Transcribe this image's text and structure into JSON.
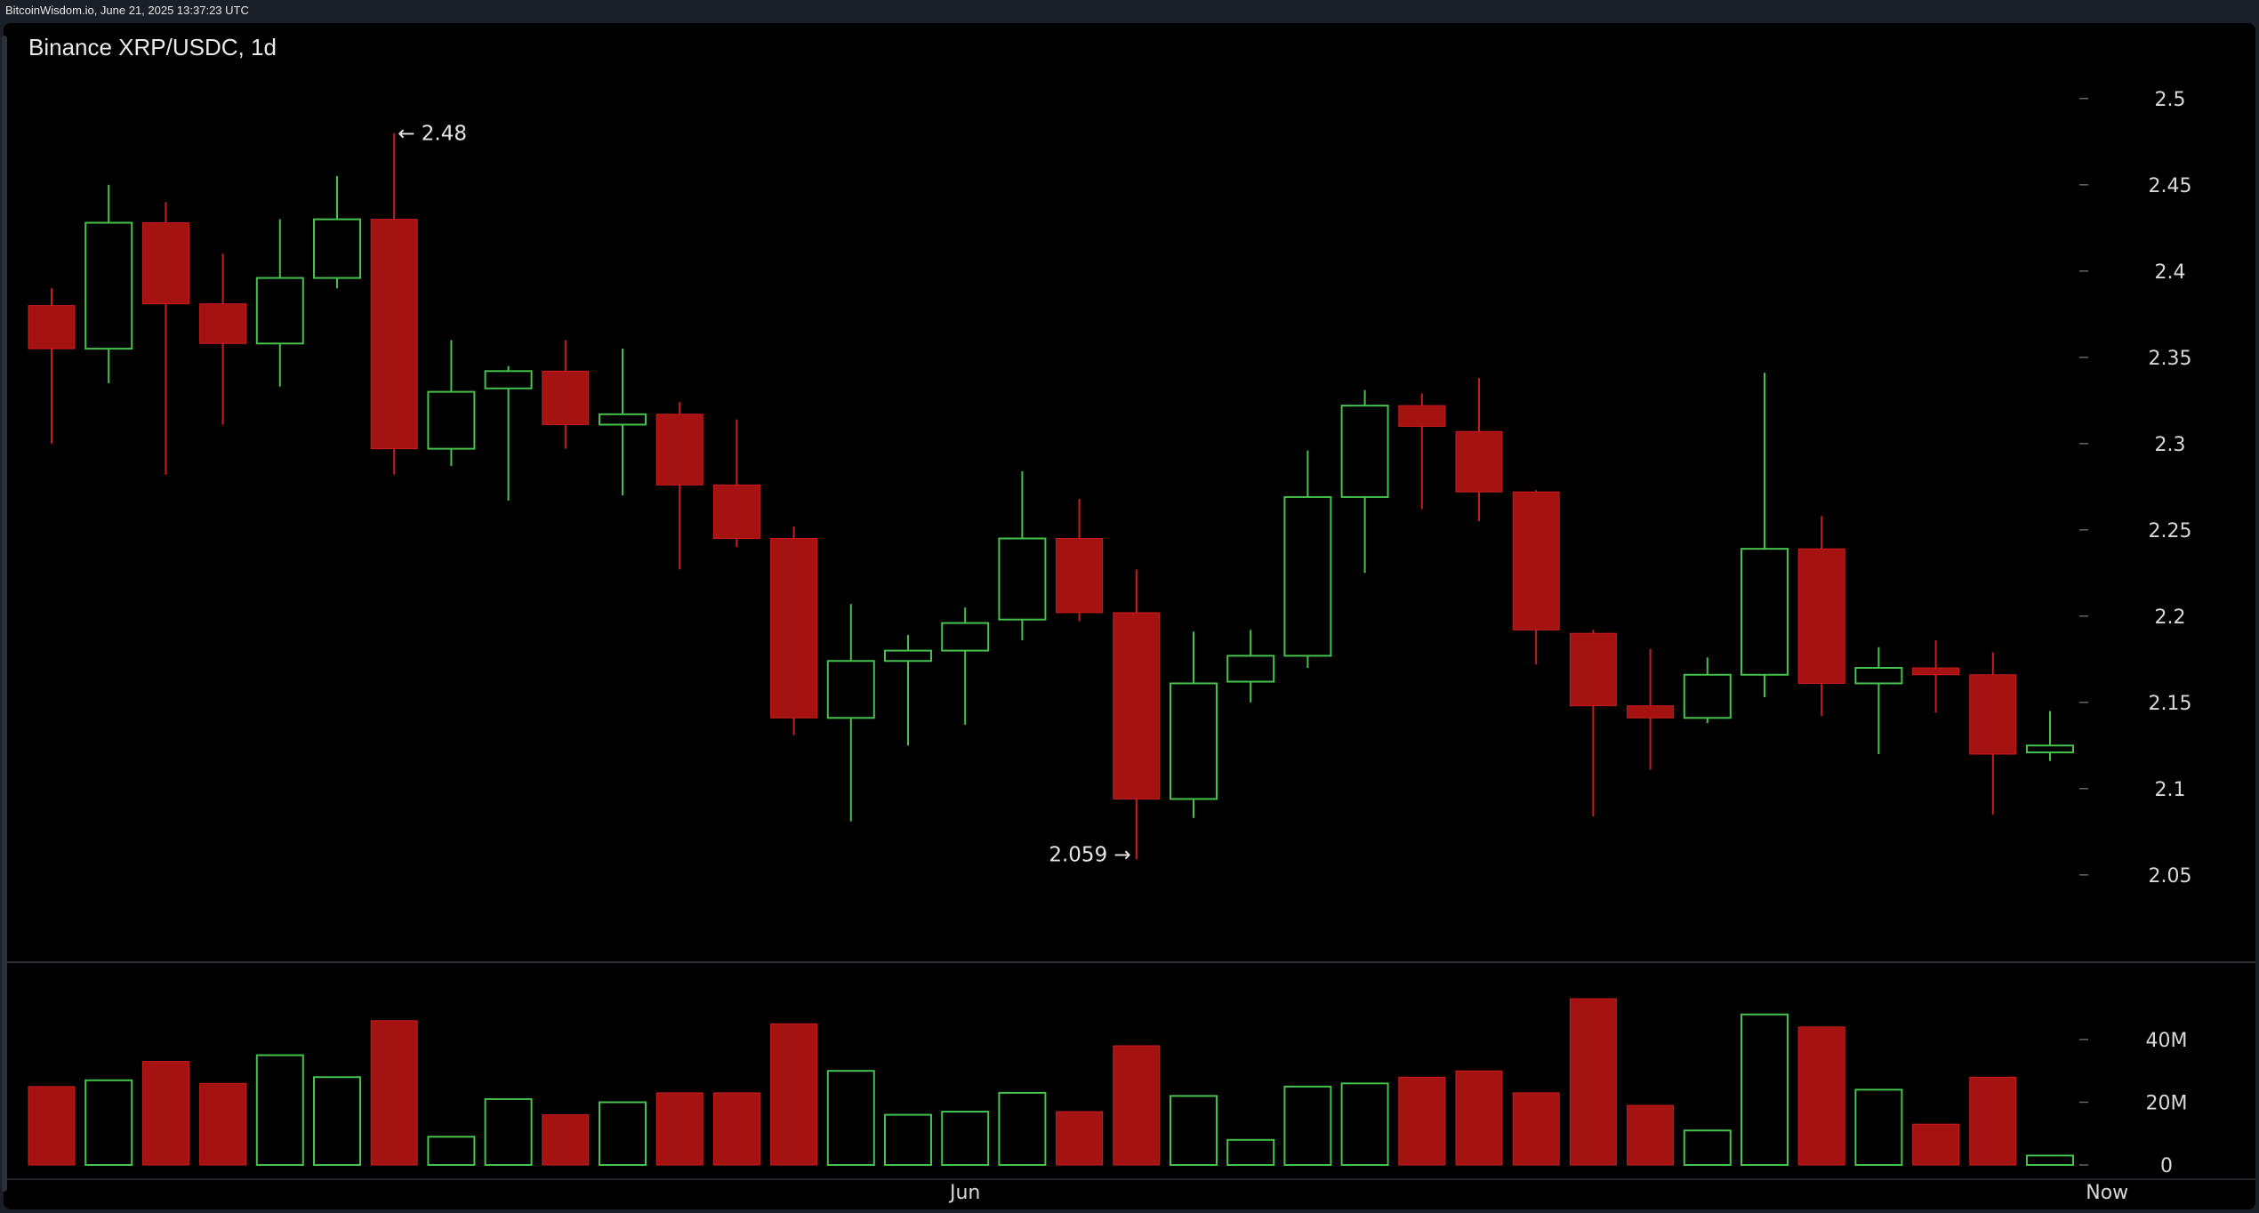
{
  "header": {
    "watermark": "BitcoinWisdom.io, June 21, 2025 13:37:23 UTC",
    "title": "Binance XRP/USDC, 1d"
  },
  "chart_data": {
    "type": "candlestick",
    "price_axis": {
      "ylim": [
        2.02,
        2.52
      ],
      "ticks": [
        "2.5",
        "2.45",
        "2.4",
        "2.35",
        "2.3",
        "2.25",
        "2.2",
        "2.15",
        "2.1",
        "2.05"
      ]
    },
    "volume_axis": {
      "ylim": [
        0,
        55
      ],
      "ticks": [
        "40M",
        "20M",
        "0"
      ],
      "tick_values": [
        40,
        20,
        0
      ]
    },
    "x_ticks": [
      {
        "label": "Jun",
        "index": 16
      },
      {
        "label": "Now",
        "index": 36
      }
    ],
    "annotations": [
      {
        "text": "← 2.48",
        "index": 6,
        "value": 2.48,
        "side": "right"
      },
      {
        "text": "2.059 →",
        "index": 19,
        "value": 2.059,
        "side": "left"
      }
    ],
    "candles": [
      {
        "o": 2.38,
        "h": 2.39,
        "l": 2.3,
        "c": 2.355,
        "v": 25
      },
      {
        "o": 2.355,
        "h": 2.45,
        "l": 2.335,
        "c": 2.428,
        "v": 27
      },
      {
        "o": 2.428,
        "h": 2.44,
        "l": 2.282,
        "c": 2.381,
        "v": 33
      },
      {
        "o": 2.381,
        "h": 2.41,
        "l": 2.311,
        "c": 2.358,
        "v": 26
      },
      {
        "o": 2.358,
        "h": 2.43,
        "l": 2.333,
        "c": 2.396,
        "v": 35
      },
      {
        "o": 2.396,
        "h": 2.455,
        "l": 2.39,
        "c": 2.43,
        "v": 28
      },
      {
        "o": 2.43,
        "h": 2.48,
        "l": 2.282,
        "c": 2.297,
        "v": 46
      },
      {
        "o": 2.297,
        "h": 2.36,
        "l": 2.287,
        "c": 2.33,
        "v": 9
      },
      {
        "o": 2.332,
        "h": 2.345,
        "l": 2.267,
        "c": 2.342,
        "v": 21
      },
      {
        "o": 2.342,
        "h": 2.36,
        "l": 2.297,
        "c": 2.311,
        "v": 16
      },
      {
        "o": 2.311,
        "h": 2.355,
        "l": 2.27,
        "c": 2.317,
        "v": 20
      },
      {
        "o": 2.317,
        "h": 2.324,
        "l": 2.227,
        "c": 2.276,
        "v": 23
      },
      {
        "o": 2.276,
        "h": 2.314,
        "l": 2.24,
        "c": 2.245,
        "v": 23
      },
      {
        "o": 2.245,
        "h": 2.252,
        "l": 2.131,
        "c": 2.141,
        "v": 45
      },
      {
        "o": 2.141,
        "h": 2.207,
        "l": 2.081,
        "c": 2.174,
        "v": 30
      },
      {
        "o": 2.174,
        "h": 2.189,
        "l": 2.125,
        "c": 2.18,
        "v": 16
      },
      {
        "o": 2.18,
        "h": 2.205,
        "l": 2.137,
        "c": 2.196,
        "v": 17
      },
      {
        "o": 2.198,
        "h": 2.284,
        "l": 2.186,
        "c": 2.245,
        "v": 23
      },
      {
        "o": 2.245,
        "h": 2.268,
        "l": 2.197,
        "c": 2.202,
        "v": 17
      },
      {
        "o": 2.202,
        "h": 2.227,
        "l": 2.059,
        "c": 2.094,
        "v": 38
      },
      {
        "o": 2.094,
        "h": 2.191,
        "l": 2.083,
        "c": 2.161,
        "v": 22
      },
      {
        "o": 2.162,
        "h": 2.192,
        "l": 2.15,
        "c": 2.177,
        "v": 8
      },
      {
        "o": 2.177,
        "h": 2.296,
        "l": 2.17,
        "c": 2.269,
        "v": 25
      },
      {
        "o": 2.269,
        "h": 2.331,
        "l": 2.225,
        "c": 2.322,
        "v": 26
      },
      {
        "o": 2.322,
        "h": 2.329,
        "l": 2.262,
        "c": 2.31,
        "v": 28
      },
      {
        "o": 2.307,
        "h": 2.338,
        "l": 2.255,
        "c": 2.272,
        "v": 30
      },
      {
        "o": 2.272,
        "h": 2.273,
        "l": 2.172,
        "c": 2.192,
        "v": 23
      },
      {
        "o": 2.19,
        "h": 2.192,
        "l": 2.084,
        "c": 2.148,
        "v": 53
      },
      {
        "o": 2.148,
        "h": 2.181,
        "l": 2.111,
        "c": 2.141,
        "v": 19
      },
      {
        "o": 2.141,
        "h": 2.176,
        "l": 2.138,
        "c": 2.166,
        "v": 11
      },
      {
        "o": 2.166,
        "h": 2.341,
        "l": 2.153,
        "c": 2.239,
        "v": 48
      },
      {
        "o": 2.239,
        "h": 2.258,
        "l": 2.142,
        "c": 2.161,
        "v": 44
      },
      {
        "o": 2.161,
        "h": 2.182,
        "l": 2.12,
        "c": 2.17,
        "v": 24
      },
      {
        "o": 2.17,
        "h": 2.186,
        "l": 2.144,
        "c": 2.166,
        "v": 13
      },
      {
        "o": 2.166,
        "h": 2.179,
        "l": 2.085,
        "c": 2.12,
        "v": 28
      },
      {
        "o": 2.121,
        "h": 2.145,
        "l": 2.116,
        "c": 2.125,
        "v": 3
      }
    ]
  }
}
